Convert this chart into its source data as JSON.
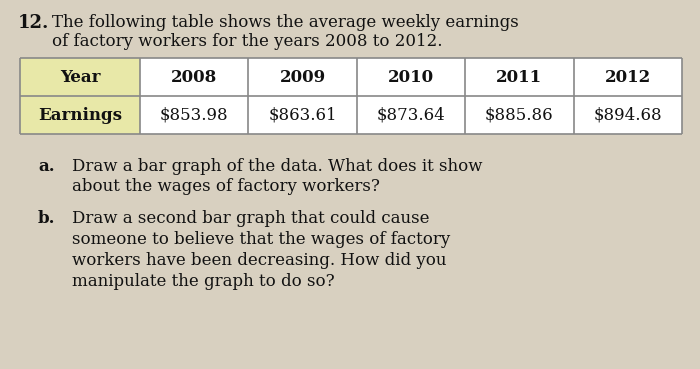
{
  "title_number": "12.",
  "title_text_line1": "The following table shows the average weekly earnings",
  "title_text_line2": "of factory workers for the years 2008 to 2012.",
  "years": [
    "2008",
    "2009",
    "2010",
    "2011",
    "2012"
  ],
  "earnings": [
    "$853.98",
    "$863.61",
    "$873.64",
    "$885.86",
    "$894.68"
  ],
  "row_label_year": "Year",
  "row_label_earnings": "Earnings",
  "part_a_label": "a.",
  "part_a_line1": "Draw a bar graph of the data. What does it show",
  "part_a_line2": "about the wages of factory workers?",
  "part_b_label": "b.",
  "part_b_line1": "Draw a second bar graph that could cause",
  "part_b_line2": "someone to believe that the wages of factory",
  "part_b_line3": "workers have been decreasing. How did you",
  "part_b_line4": "manipulate the graph to do so?",
  "background_color": "#d8d0c0",
  "table_header_bg": "#e8e8a8",
  "table_data_bg": "#ffffff",
  "table_border_color": "#888888",
  "text_color": "#111111"
}
